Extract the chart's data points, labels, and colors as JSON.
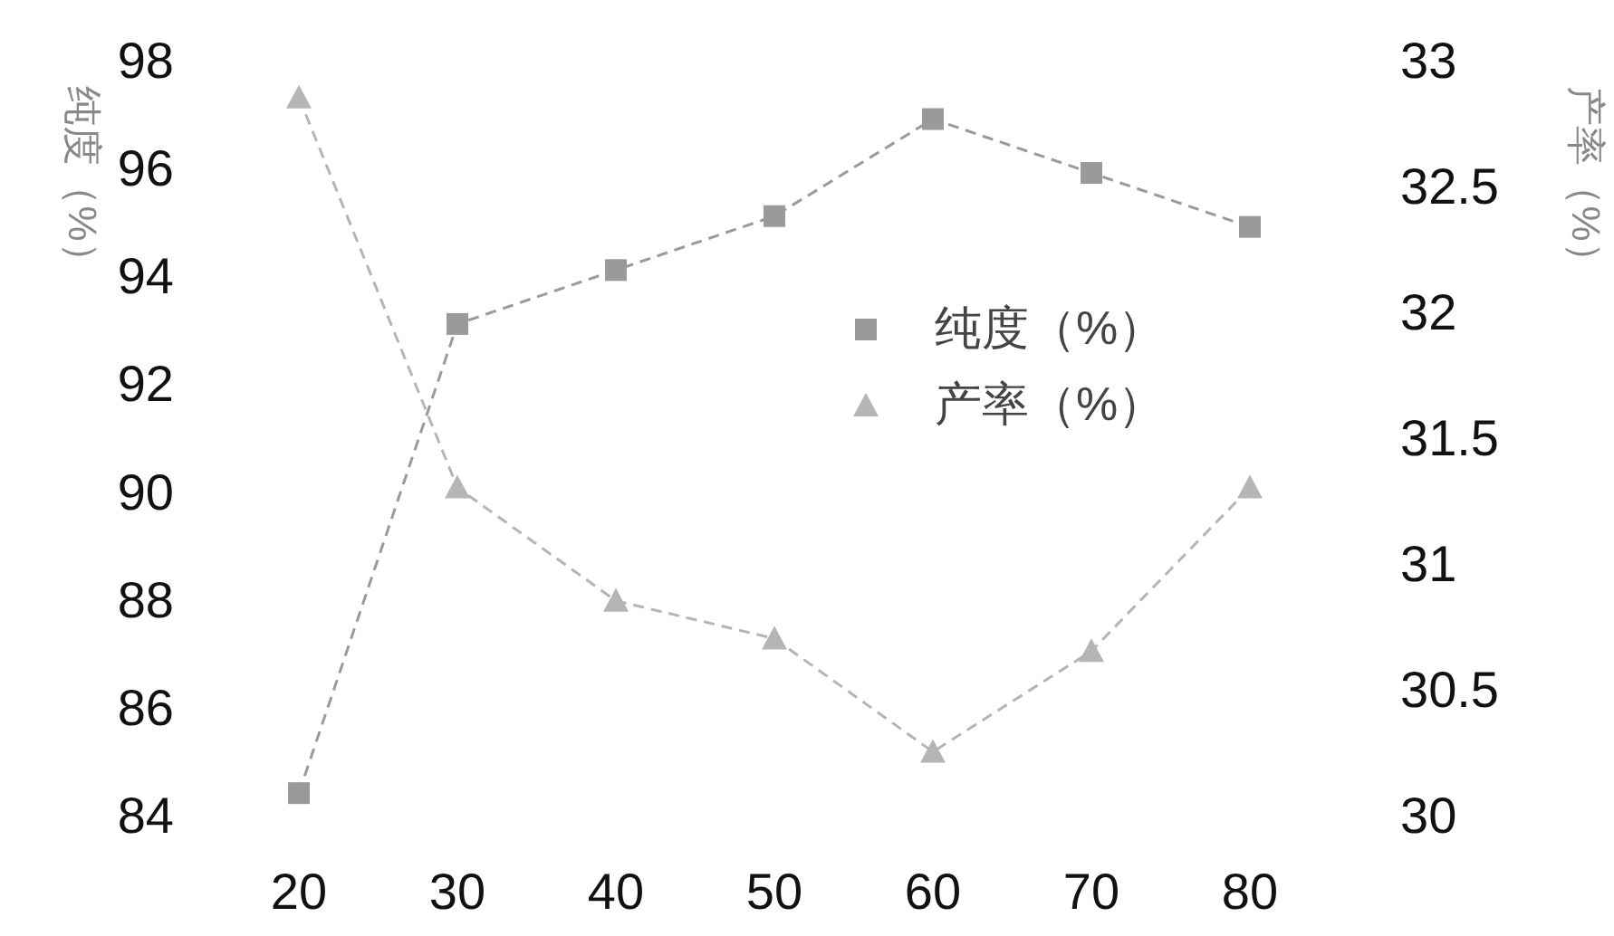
{
  "chart_data": {
    "type": "line",
    "ylabel": "纯度（%）",
    "y2label": "产率（%）",
    "x": [
      20,
      30,
      40,
      50,
      60,
      70,
      80
    ],
    "xlim": [
      20,
      80
    ],
    "xticks": [
      20,
      30,
      40,
      50,
      60,
      70,
      80
    ],
    "ylim": [
      84,
      98
    ],
    "yticks": [
      84,
      86,
      88,
      90,
      92,
      94,
      96,
      98
    ],
    "y2lim": [
      30,
      33
    ],
    "y2ticks": [
      30,
      30.5,
      31,
      31.5,
      32,
      32.5,
      33
    ],
    "series": [
      {
        "name": "纯度（%）",
        "color": "#9a9a9a",
        "marker": "square",
        "values": [
          84.4,
          93.1,
          94.1,
          95.1,
          96.9,
          95.9,
          94.9
        ]
      },
      {
        "name": "产率（%）",
        "color": "#b5b5b5",
        "marker": "triangle",
        "axis": "y2",
        "values": [
          32.85,
          31.3,
          30.85,
          30.7,
          30.25,
          30.65,
          31.3
        ]
      }
    ],
    "legend": "right",
    "grid": false,
    "line_style": "dashed"
  }
}
